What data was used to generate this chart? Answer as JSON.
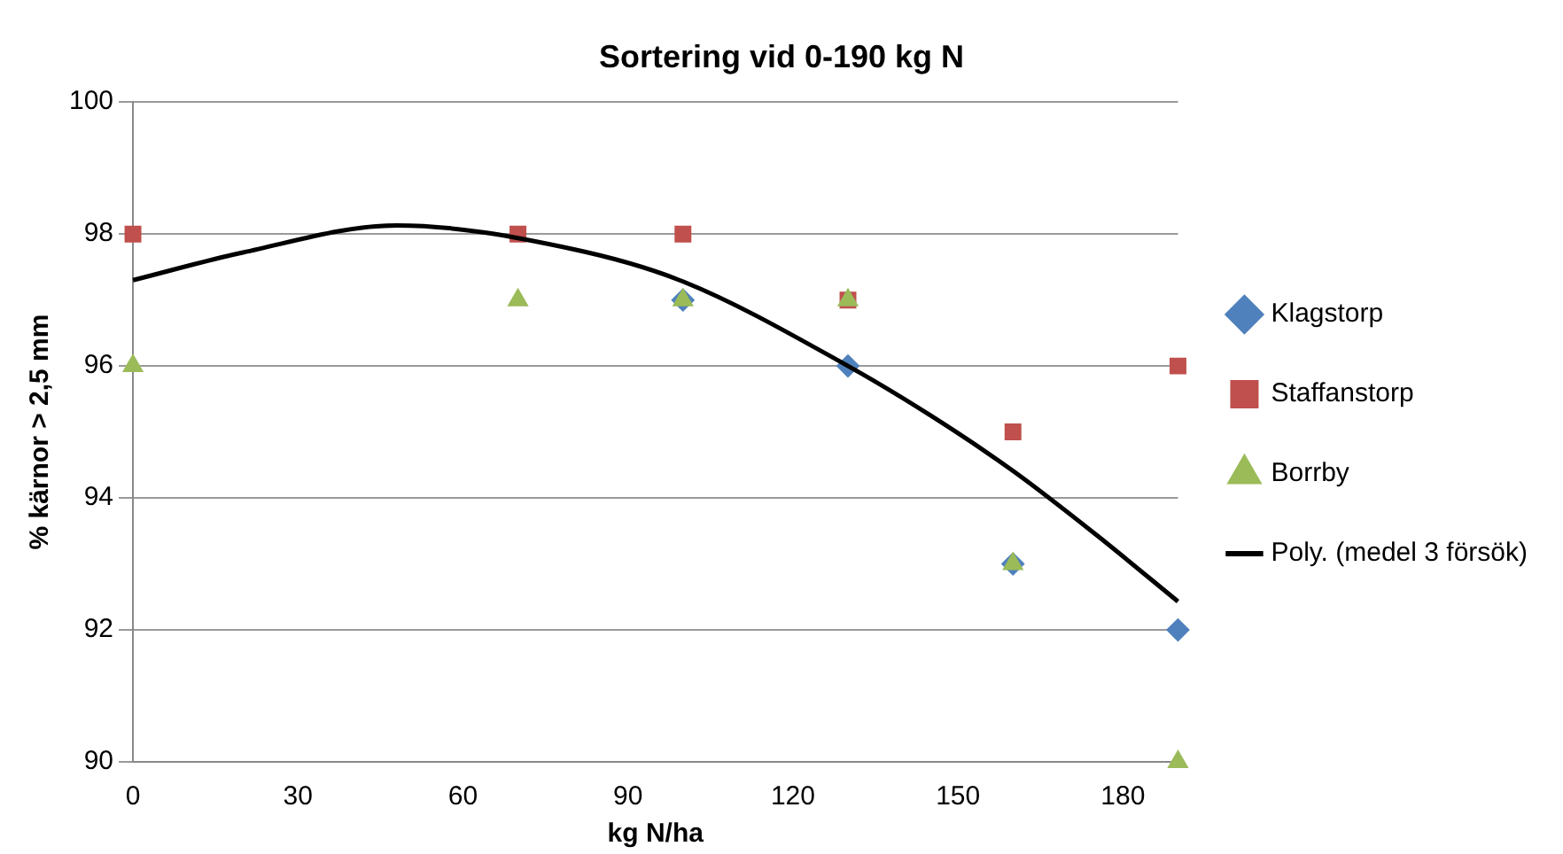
{
  "chart_data": {
    "type": "scatter",
    "title": "Sortering vid 0-190 kg N",
    "xlabel": "kg N/ha",
    "ylabel": "% kärnor > 2,5 mm",
    "xlim": [
      0,
      190
    ],
    "xticks": [
      0,
      30,
      60,
      90,
      120,
      150,
      180
    ],
    "ylim": [
      90,
      100
    ],
    "yticks": [
      90,
      92,
      94,
      96,
      98,
      100
    ],
    "grid": "y",
    "legend": "right",
    "series": [
      {
        "name": "Klagstorp",
        "color": "#4f81bd",
        "marker": "diamond",
        "x": [
          100,
          130,
          160,
          190
        ],
        "values": [
          97,
          96,
          93,
          92
        ]
      },
      {
        "name": "Staffanstorp",
        "color": "#c0504d",
        "marker": "square",
        "x": [
          0,
          70,
          100,
          130,
          160,
          190
        ],
        "values": [
          98,
          98,
          98,
          97,
          95,
          96
        ]
      },
      {
        "name": "Borrby",
        "color": "#9bbb59",
        "marker": "triangle",
        "x": [
          0,
          70,
          100,
          130,
          160,
          190
        ],
        "values": [
          96,
          97,
          97,
          97,
          93,
          90
        ]
      },
      {
        "name": "Poly. (medel 3 försök)",
        "type": "line",
        "color": "#000000",
        "marker": "none",
        "line_style": "solid",
        "x": [
          0,
          20,
          48,
          80,
          100,
          130,
          145,
          160,
          175,
          190
        ],
        "values": [
          97.3,
          97.72,
          98.13,
          97.77,
          97.28,
          96.0,
          95.25,
          94.41,
          93.45,
          92.43
        ]
      }
    ]
  }
}
